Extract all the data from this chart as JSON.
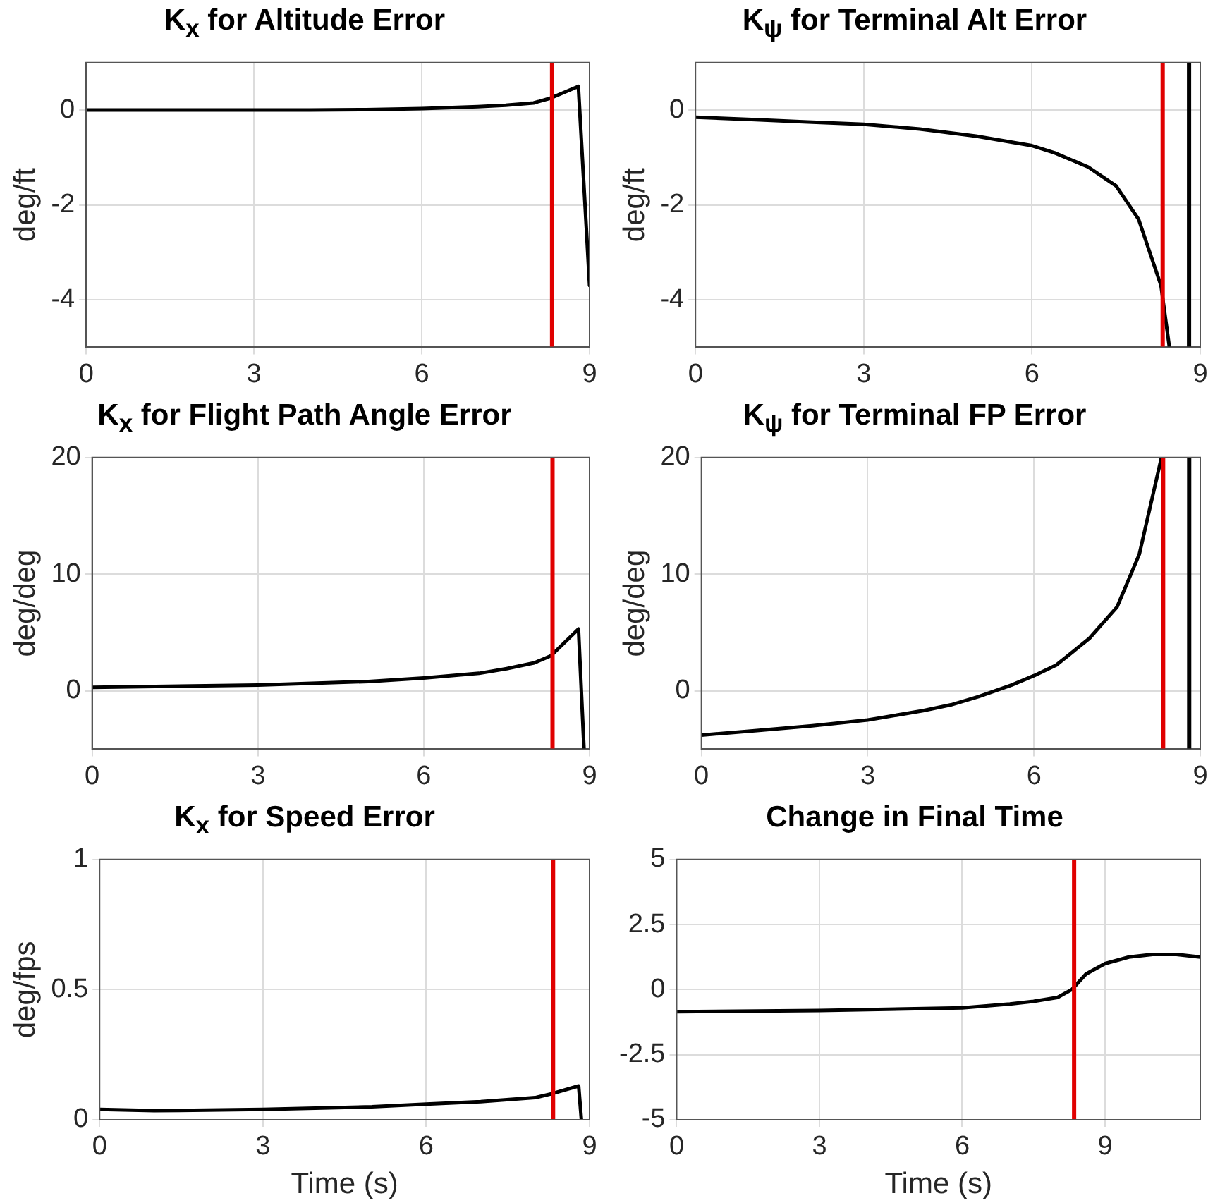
{
  "chart_data": [
    {
      "type": "line",
      "title": "K$_{x}$ for Altitude Error",
      "ylabel": "deg/ft",
      "xlim": [
        0,
        9
      ],
      "xticks": [
        0,
        3,
        6,
        9
      ],
      "ylim": [
        -5,
        1
      ],
      "yticks": [
        -4,
        -2,
        0
      ],
      "grid": true,
      "marker": "none",
      "series": [
        {
          "color": "#000000",
          "x": [
            0,
            2,
            4,
            5,
            6,
            7,
            7.5,
            8,
            8.3,
            8.8,
            9.0
          ],
          "values": [
            0,
            0,
            0,
            0.01,
            0.03,
            0.07,
            0.1,
            0.15,
            0.25,
            0.5,
            -3.7
          ]
        }
      ],
      "ref_lines": [
        {
          "axis": "x",
          "value": 8.33,
          "color": "#e00000"
        }
      ]
    },
    {
      "type": "line",
      "title": "K$_{ψ}$ for Terminal Alt Error",
      "ylabel": "deg/ft",
      "xlim": [
        0,
        9
      ],
      "xticks": [
        0,
        3,
        6,
        9
      ],
      "ylim": [
        -5,
        1
      ],
      "yticks": [
        -4,
        -2,
        0
      ],
      "grid": true,
      "marker": "none",
      "series": [
        {
          "color": "#000000",
          "x": [
            0,
            1,
            2,
            3,
            4,
            5,
            6,
            6.4,
            7,
            7.5,
            7.9,
            8.3,
            8.45
          ],
          "values": [
            -0.15,
            -0.2,
            -0.25,
            -0.3,
            -0.4,
            -0.55,
            -0.75,
            -0.9,
            -1.2,
            -1.6,
            -2.3,
            -3.7,
            -5
          ]
        }
      ],
      "ref_lines": [
        {
          "axis": "x",
          "value": 8.33,
          "color": "#e00000"
        },
        {
          "axis": "x",
          "value": 8.8,
          "color": "#000000"
        }
      ]
    },
    {
      "type": "line",
      "title": "K$_{x}$ for Flight Path Angle Error",
      "ylabel": "deg/deg",
      "xlim": [
        0,
        9
      ],
      "xticks": [
        0,
        3,
        6,
        9
      ],
      "ylim": [
        -5,
        20
      ],
      "yticks": [
        0,
        10,
        20
      ],
      "grid": true,
      "marker": "none",
      "series": [
        {
          "color": "#000000",
          "x": [
            0,
            3,
            5,
            6,
            7,
            7.5,
            8,
            8.3,
            8.8,
            8.9
          ],
          "values": [
            0.3,
            0.5,
            0.8,
            1.1,
            1.5,
            1.9,
            2.4,
            3,
            5.3,
            -5
          ]
        }
      ],
      "ref_lines": [
        {
          "axis": "x",
          "value": 8.33,
          "color": "#e00000"
        }
      ]
    },
    {
      "type": "line",
      "title": "K$_{ψ}$ for Terminal FP Error",
      "ylabel": "deg/deg",
      "xlim": [
        0,
        9
      ],
      "xticks": [
        0,
        3,
        6,
        9
      ],
      "ylim": [
        -5,
        20
      ],
      "yticks": [
        0,
        10,
        20
      ],
      "grid": true,
      "marker": "none",
      "series": [
        {
          "color": "#000000",
          "x": [
            0,
            1,
            2,
            3,
            4,
            4.5,
            5,
            5.6,
            6,
            6.4,
            7,
            7.5,
            7.9,
            8.3
          ],
          "values": [
            -3.8,
            -3.4,
            -3,
            -2.5,
            -1.7,
            -1.2,
            -0.5,
            0.5,
            1.3,
            2.2,
            4.5,
            7.2,
            11.7,
            20
          ]
        }
      ],
      "ref_lines": [
        {
          "axis": "x",
          "value": 8.33,
          "color": "#e00000"
        },
        {
          "axis": "x",
          "value": 8.8,
          "color": "#000000"
        }
      ]
    },
    {
      "type": "line",
      "title": "K$_{x}$ for Speed Error",
      "xlabel": "Time (s)",
      "ylabel": "deg/fps",
      "xlim": [
        0,
        9
      ],
      "xticks": [
        0,
        3,
        6,
        9
      ],
      "ylim": [
        0,
        1
      ],
      "yticks": [
        0,
        0.5,
        1
      ],
      "grid": true,
      "marker": "none",
      "series": [
        {
          "color": "#000000",
          "x": [
            0,
            1,
            3,
            5,
            6,
            7,
            8,
            8.3,
            8.8,
            8.85
          ],
          "values": [
            0.04,
            0.035,
            0.04,
            0.05,
            0.06,
            0.07,
            0.085,
            0.1,
            0.13,
            0
          ]
        }
      ],
      "ref_lines": [
        {
          "axis": "x",
          "value": 8.33,
          "color": "#e00000"
        }
      ]
    },
    {
      "type": "line",
      "title": "Change in Final Time",
      "xlabel": "Time (s)",
      "xlim": [
        0,
        11
      ],
      "xticks": [
        0,
        3,
        6,
        9
      ],
      "ylim": [
        -5,
        5
      ],
      "yticks": [
        -5,
        -2.5,
        0,
        2.5,
        5
      ],
      "grid": true,
      "marker": "none",
      "series": [
        {
          "color": "#000000",
          "x": [
            0,
            3,
            6,
            7,
            7.5,
            8,
            8.3,
            8.6,
            9,
            9.5,
            10,
            10.5,
            11
          ],
          "values": [
            -0.85,
            -0.8,
            -0.7,
            -0.55,
            -0.45,
            -0.3,
            0,
            0.6,
            1.0,
            1.25,
            1.35,
            1.35,
            1.25
          ]
        }
      ],
      "ref_lines": [
        {
          "axis": "x",
          "value": 8.35,
          "color": "#e00000"
        }
      ]
    }
  ]
}
